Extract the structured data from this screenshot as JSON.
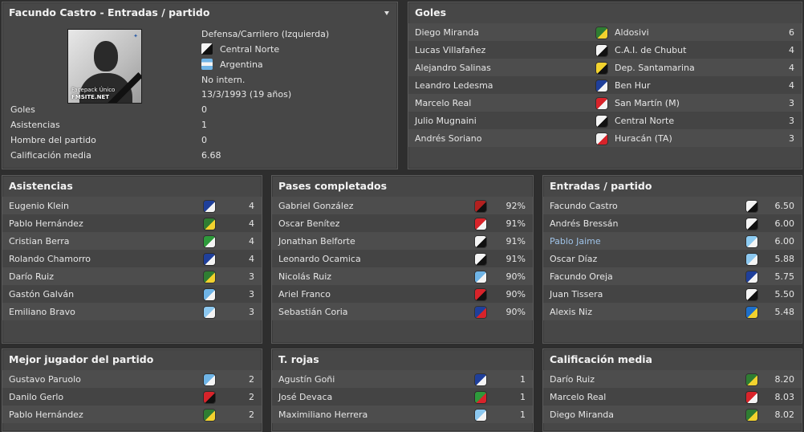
{
  "profile": {
    "title": "Facundo Castro - Entradas / partido",
    "photo_watermark_line1": "Facepack Único",
    "photo_watermark_line2": "FMSITE.NET",
    "position": "Defensa/Carrilero (Izquierda)",
    "club": "Central Norte",
    "nationality": "Argentina",
    "international": "No intern.",
    "birth": "13/3/1993 (19 años)",
    "stats": [
      {
        "label": "Goles",
        "value": "0"
      },
      {
        "label": "Asistencias",
        "value": "1"
      },
      {
        "label": "Hombre del partido",
        "value": "0"
      },
      {
        "label": "Calificación media",
        "value": "6.68"
      }
    ]
  },
  "goles": {
    "title": "Goles",
    "rows": [
      {
        "name": "Diego Miranda",
        "team": "Aldosivi",
        "value": "6",
        "crest": "aldosivi-crest-icon"
      },
      {
        "name": "Lucas Villafañez",
        "team": "C.A.I. de Chubut",
        "value": "4",
        "crest": "cai-crest-icon"
      },
      {
        "name": "Alejandro Salinas",
        "team": "Dep. Santamarina",
        "value": "4",
        "crest": "santamarina-crest-icon"
      },
      {
        "name": "Leandro Ledesma",
        "team": "Ben Hur",
        "value": "4",
        "crest": "benhur-crest-icon"
      },
      {
        "name": "Marcelo Real",
        "team": "San Martín (M)",
        "value": "3",
        "crest": "sanmartin-crest-icon"
      },
      {
        "name": "Julio Mugnaini",
        "team": "Central Norte",
        "value": "3",
        "crest": "centralnorte-crest-icon"
      },
      {
        "name": "Andrés Soriano",
        "team": "Huracán (TA)",
        "value": "3",
        "crest": "huracan-crest-icon"
      }
    ]
  },
  "asistencias": {
    "title": "Asistencias",
    "rows": [
      {
        "name": "Eugenio Klein",
        "value": "4",
        "crest": "benhur-crest-icon"
      },
      {
        "name": "Pablo Hernández",
        "value": "4",
        "crest": "aldosivi-crest-icon"
      },
      {
        "name": "Cristian Berra",
        "value": "4",
        "crest": "green-crest-icon"
      },
      {
        "name": "Rolando Chamorro",
        "value": "4",
        "crest": "benhur-crest-icon"
      },
      {
        "name": "Darío Ruiz",
        "value": "3",
        "crest": "aldosivi-crest-icon"
      },
      {
        "name": "Gastón Galván",
        "value": "3",
        "crest": "skyblue-crest-icon"
      },
      {
        "name": "Emiliano Bravo",
        "value": "3",
        "crest": "striped-crest-icon"
      }
    ]
  },
  "pases": {
    "title": "Pases completados",
    "rows": [
      {
        "name": "Gabriel González",
        "value": "92%",
        "crest": "redblack-crest-icon"
      },
      {
        "name": "Oscar Benítez",
        "value": "91%",
        "crest": "sanmartin-crest-icon"
      },
      {
        "name": "Jonathan Belforte",
        "value": "91%",
        "crest": "cai-crest-icon"
      },
      {
        "name": "Leonardo Ocamica",
        "value": "91%",
        "crest": "centralnorte-crest-icon"
      },
      {
        "name": "Nicolás Ruiz",
        "value": "90%",
        "crest": "skyblue-crest-icon"
      },
      {
        "name": "Ariel Franco",
        "value": "90%",
        "crest": "redcircle-crest-icon"
      },
      {
        "name": "Sebastián Coria",
        "value": "90%",
        "crest": "redblue-crest-icon"
      }
    ]
  },
  "entradas": {
    "title": "Entradas / partido",
    "rows": [
      {
        "name": "Facundo Castro",
        "value": "6.50",
        "crest": "centralnorte-crest-icon",
        "highlight": false
      },
      {
        "name": "Andrés Bressán",
        "value": "6.00",
        "crest": "cai-crest-icon",
        "highlight": false
      },
      {
        "name": "Pablo Jaime",
        "value": "6.00",
        "crest": "wings-crest-icon",
        "highlight": true
      },
      {
        "name": "Oscar Díaz",
        "value": "5.88",
        "crest": "striped-crest-icon",
        "highlight": false
      },
      {
        "name": "Facundo Oreja",
        "value": "5.75",
        "crest": "benhur-crest-icon",
        "highlight": false
      },
      {
        "name": "Juan Tissera",
        "value": "5.50",
        "crest": "centralnorte-crest-icon",
        "highlight": false
      },
      {
        "name": "Alexis Niz",
        "value": "5.48",
        "crest": "yellowblue-crest-icon",
        "highlight": false
      }
    ]
  },
  "mejor": {
    "title": "Mejor jugador del partido",
    "rows": [
      {
        "name": "Gustavo Paruolo",
        "value": "2",
        "crest": "skyblue-crest-icon"
      },
      {
        "name": "Danilo Gerlo",
        "value": "2",
        "crest": "redcircle-crest-icon"
      },
      {
        "name": "Pablo Hernández",
        "value": "2",
        "crest": "aldosivi-crest-icon"
      }
    ]
  },
  "rojas": {
    "title": "T. rojas",
    "rows": [
      {
        "name": "Agustín Goñi",
        "value": "1",
        "crest": "benhur-crest-icon"
      },
      {
        "name": "José Devaca",
        "value": "1",
        "crest": "greenred-crest-icon"
      },
      {
        "name": "Maximiliano Herrera",
        "value": "1",
        "crest": "striped-crest-icon"
      }
    ]
  },
  "calificacion": {
    "title": "Calificación media",
    "rows": [
      {
        "name": "Darío Ruiz",
        "value": "8.20",
        "crest": "aldosivi-crest-icon"
      },
      {
        "name": "Marcelo Real",
        "value": "8.03",
        "crest": "sanmartin-crest-icon"
      },
      {
        "name": "Diego Miranda",
        "value": "8.02",
        "crest": "aldosivi-crest-icon"
      }
    ]
  },
  "crest_colors": {
    "aldosivi-crest-icon": [
      "#2f7d32",
      "#f2d22e"
    ],
    "cai-crest-icon": [
      "#f4f4f4",
      "#111111"
    ],
    "santamarina-crest-icon": [
      "#f2d22e",
      "#111111"
    ],
    "benhur-crest-icon": [
      "#1f3f9a",
      "#f4f4f4"
    ],
    "sanmartin-crest-icon": [
      "#d8232a",
      "#f4f4f4"
    ],
    "centralnorte-crest-icon": [
      "#f4f4f4",
      "#111111"
    ],
    "huracan-crest-icon": [
      "#f4f4f4",
      "#d8232a"
    ],
    "green-crest-icon": [
      "#2e9a3b",
      "#f4f4f4"
    ],
    "skyblue-crest-icon": [
      "#6fb4e6",
      "#f4f4f4"
    ],
    "striped-crest-icon": [
      "#8cc8f0",
      "#f4f4f4"
    ],
    "redblack-crest-icon": [
      "#b3201f",
      "#111111"
    ],
    "redcircle-crest-icon": [
      "#d8232a",
      "#111111"
    ],
    "redblue-crest-icon": [
      "#1f3f9a",
      "#d8232a"
    ],
    "wings-crest-icon": [
      "#8ccbf2",
      "#f4f4f4"
    ],
    "yellowblue-crest-icon": [
      "#1f6fc9",
      "#f2d22e"
    ],
    "greenred-crest-icon": [
      "#2e9a3b",
      "#d8232a"
    ]
  }
}
